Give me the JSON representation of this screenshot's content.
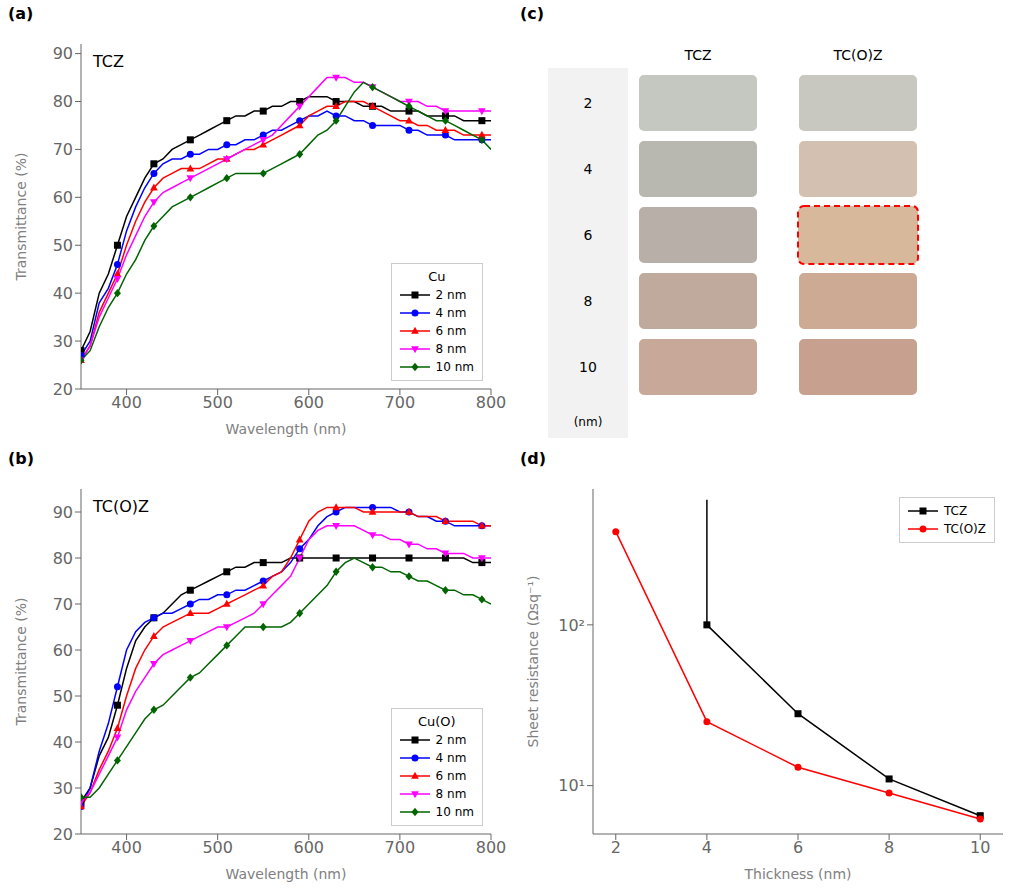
{
  "chart_data": [
    {
      "type": "line",
      "title": "TCZ",
      "annotations": [
        "(a)"
      ],
      "xlabel": "Wavelength (nm)",
      "ylabel": "Transmittance (%)",
      "x": [
        350,
        360,
        370,
        380,
        390,
        400,
        410,
        420,
        430,
        440,
        450,
        460,
        470,
        480,
        490,
        500,
        510,
        520,
        530,
        540,
        550,
        560,
        570,
        580,
        590,
        600,
        610,
        620,
        630,
        640,
        650,
        660,
        670,
        680,
        690,
        700,
        710,
        720,
        730,
        740,
        750,
        760,
        770,
        780,
        790,
        800
      ],
      "series": [
        {
          "name": "2 nm",
          "color": "#000000",
          "marker": "square",
          "values": [
            28,
            32,
            40,
            44,
            50,
            56,
            60,
            64,
            67,
            68,
            70,
            71,
            72,
            73,
            74,
            75,
            76,
            77,
            77,
            78,
            78,
            79,
            79,
            80,
            80,
            81,
            81,
            81,
            80,
            80,
            80,
            79,
            79,
            79,
            78,
            78,
            78,
            78,
            77,
            77,
            77,
            77,
            76,
            76,
            76,
            76
          ]
        },
        {
          "name": "4 nm",
          "color": "#0000ff",
          "marker": "circle",
          "values": [
            27,
            30,
            38,
            41,
            46,
            53,
            58,
            62,
            65,
            67,
            68,
            68,
            69,
            69,
            70,
            70,
            71,
            71,
            72,
            72,
            73,
            74,
            74,
            75,
            76,
            77,
            77,
            78,
            77,
            77,
            76,
            76,
            75,
            75,
            75,
            75,
            74,
            74,
            73,
            73,
            73,
            72,
            72,
            72,
            72,
            72
          ]
        },
        {
          "name": "6 nm",
          "color": "#ff0000",
          "marker": "triangle-up",
          "values": [
            26,
            29,
            36,
            40,
            44,
            50,
            55,
            59,
            62,
            64,
            65,
            66,
            66,
            66,
            67,
            68,
            68,
            69,
            70,
            70,
            71,
            72,
            73,
            74,
            75,
            77,
            78,
            79,
            79,
            80,
            80,
            80,
            79,
            78,
            77,
            76,
            76,
            75,
            75,
            74,
            74,
            74,
            73,
            73,
            73,
            73
          ]
        },
        {
          "name": "8 nm",
          "color": "#ff00ff",
          "marker": "triangle-down",
          "values": [
            26,
            29,
            35,
            39,
            43,
            48,
            52,
            56,
            59,
            61,
            62,
            63,
            64,
            65,
            66,
            67,
            68,
            69,
            70,
            71,
            72,
            73,
            75,
            77,
            79,
            81,
            83,
            85,
            85,
            85,
            84,
            84,
            83,
            82,
            81,
            80,
            80,
            80,
            79,
            79,
            78,
            78,
            78,
            78,
            78,
            78
          ]
        },
        {
          "name": "10 nm",
          "color": "#006400",
          "marker": "diamond",
          "values": [
            26,
            28,
            33,
            37,
            40,
            44,
            47,
            51,
            54,
            56,
            58,
            59,
            60,
            61,
            62,
            63,
            64,
            65,
            65,
            65,
            65,
            66,
            67,
            68,
            69,
            71,
            73,
            74,
            76,
            79,
            82,
            84,
            83,
            82,
            81,
            80,
            79,
            78,
            77,
            76,
            76,
            75,
            74,
            73,
            72,
            70
          ]
        }
      ],
      "xlim": [
        350,
        800
      ],
      "xticks": [
        400,
        500,
        600,
        700,
        800
      ],
      "ylim": [
        20,
        92
      ],
      "yticks": [
        20,
        30,
        40,
        50,
        60,
        70,
        80,
        90
      ],
      "legend": "lower right",
      "legend_title": "Cu"
    },
    {
      "type": "line",
      "title": "TC(O)Z",
      "annotations": [
        "(b)"
      ],
      "xlabel": "Wavelength (nm)",
      "ylabel": "Transmittance (%)",
      "x": [
        350,
        360,
        370,
        380,
        390,
        400,
        410,
        420,
        430,
        440,
        450,
        460,
        470,
        480,
        490,
        500,
        510,
        520,
        530,
        540,
        550,
        560,
        570,
        580,
        590,
        600,
        610,
        620,
        630,
        640,
        650,
        660,
        670,
        680,
        690,
        700,
        710,
        720,
        730,
        740,
        750,
        760,
        770,
        780,
        790,
        800
      ],
      "series": [
        {
          "name": "2 nm",
          "color": "#000000",
          "marker": "square",
          "values": [
            27,
            30,
            37,
            41,
            48,
            56,
            62,
            65,
            67,
            68,
            70,
            72,
            73,
            74,
            75,
            76,
            77,
            78,
            78,
            79,
            79,
            79,
            79,
            80,
            80,
            80,
            80,
            80,
            80,
            80,
            80,
            80,
            80,
            80,
            80,
            80,
            80,
            80,
            80,
            80,
            80,
            80,
            80,
            79,
            79,
            79
          ]
        },
        {
          "name": "4 nm",
          "color": "#0000ff",
          "marker": "circle",
          "values": [
            26,
            30,
            38,
            44,
            52,
            60,
            64,
            66,
            67,
            68,
            68,
            69,
            70,
            71,
            71,
            72,
            72,
            73,
            73,
            74,
            75,
            76,
            77,
            79,
            82,
            84,
            87,
            89,
            90,
            91,
            91,
            91,
            91,
            91,
            91,
            90,
            90,
            89,
            89,
            88,
            88,
            87,
            87,
            87,
            87,
            87
          ]
        },
        {
          "name": "6 nm",
          "color": "#ff0000",
          "marker": "triangle-up",
          "values": [
            26,
            29,
            34,
            38,
            43,
            50,
            56,
            60,
            63,
            65,
            66,
            67,
            68,
            68,
            68,
            69,
            70,
            71,
            72,
            73,
            74,
            76,
            77,
            80,
            84,
            88,
            90,
            91,
            91,
            91,
            91,
            90,
            90,
            90,
            90,
            90,
            90,
            89,
            89,
            89,
            88,
            88,
            88,
            88,
            87,
            87
          ]
        },
        {
          "name": "8 nm",
          "color": "#ff00ff",
          "marker": "triangle-down",
          "values": [
            27,
            29,
            33,
            37,
            41,
            47,
            51,
            54,
            57,
            59,
            60,
            61,
            62,
            63,
            64,
            65,
            65,
            66,
            67,
            68,
            70,
            72,
            74,
            76,
            80,
            84,
            86,
            87,
            87,
            87,
            87,
            86,
            85,
            85,
            84,
            84,
            83,
            83,
            82,
            82,
            81,
            81,
            81,
            80,
            80,
            80
          ]
        },
        {
          "name": "10 nm",
          "color": "#006400",
          "marker": "diamond",
          "values": [
            28,
            28,
            30,
            33,
            36,
            39,
            42,
            45,
            47,
            48,
            50,
            52,
            54,
            55,
            57,
            59,
            61,
            63,
            65,
            65,
            65,
            65,
            65,
            66,
            68,
            70,
            72,
            74,
            77,
            79,
            80,
            79,
            78,
            78,
            77,
            77,
            76,
            75,
            75,
            74,
            73,
            73,
            72,
            72,
            71,
            70
          ]
        }
      ],
      "xlim": [
        350,
        800
      ],
      "xticks": [
        400,
        500,
        600,
        700,
        800
      ],
      "ylim": [
        20,
        95
      ],
      "yticks": [
        20,
        30,
        40,
        50,
        60,
        70,
        80,
        90
      ],
      "legend": "lower right",
      "legend_title": "Cu(O)"
    },
    {
      "type": "swatches",
      "annotations": [
        "(c)"
      ],
      "ylabel": "(nm)",
      "categories": [
        "2",
        "4",
        "6",
        "8",
        "10"
      ],
      "series": [
        {
          "name": "TCZ",
          "colors": [
            "#c5c8c0",
            "#b8b8b0",
            "#b8b0a8",
            "#c0aa9e",
            "#c8a898"
          ]
        },
        {
          "name": "TC(O)Z",
          "colors": [
            "#c8c8c0",
            "#d4c0b0",
            "#d8b89a",
            "#ccaa94",
            "#c8a090"
          ]
        }
      ],
      "highlight": {
        "series": "TC(O)Z",
        "category": "6",
        "color": "#ff0000"
      }
    },
    {
      "type": "line",
      "annotations": [
        "(d)"
      ],
      "log": "y",
      "xlabel": "Thickness (nm)",
      "ylabel": "Sheet resistance (Ωsq⁻¹)",
      "x": [
        2,
        4,
        6,
        8,
        10
      ],
      "series": [
        {
          "name": "TCZ",
          "color": "#000000",
          "marker": "square",
          "values": [
            null,
            100,
            28,
            11,
            6.5
          ]
        },
        {
          "name": "TC(O)Z",
          "color": "#ff0000",
          "marker": "circle",
          "values": [
            380,
            25,
            13,
            9,
            6.2
          ]
        }
      ],
      "extra_line": {
        "x": 4,
        "values": [
          100,
          600
        ],
        "color": "#000000"
      },
      "xlim": [
        1.5,
        10.5
      ],
      "xticks": [
        2,
        4,
        6,
        8,
        10
      ],
      "ylim": [
        5,
        700
      ],
      "yticks": [
        {
          "value": 10,
          "label": "10¹"
        },
        {
          "value": 100,
          "label": "10²"
        }
      ],
      "legend": "upper right"
    }
  ]
}
